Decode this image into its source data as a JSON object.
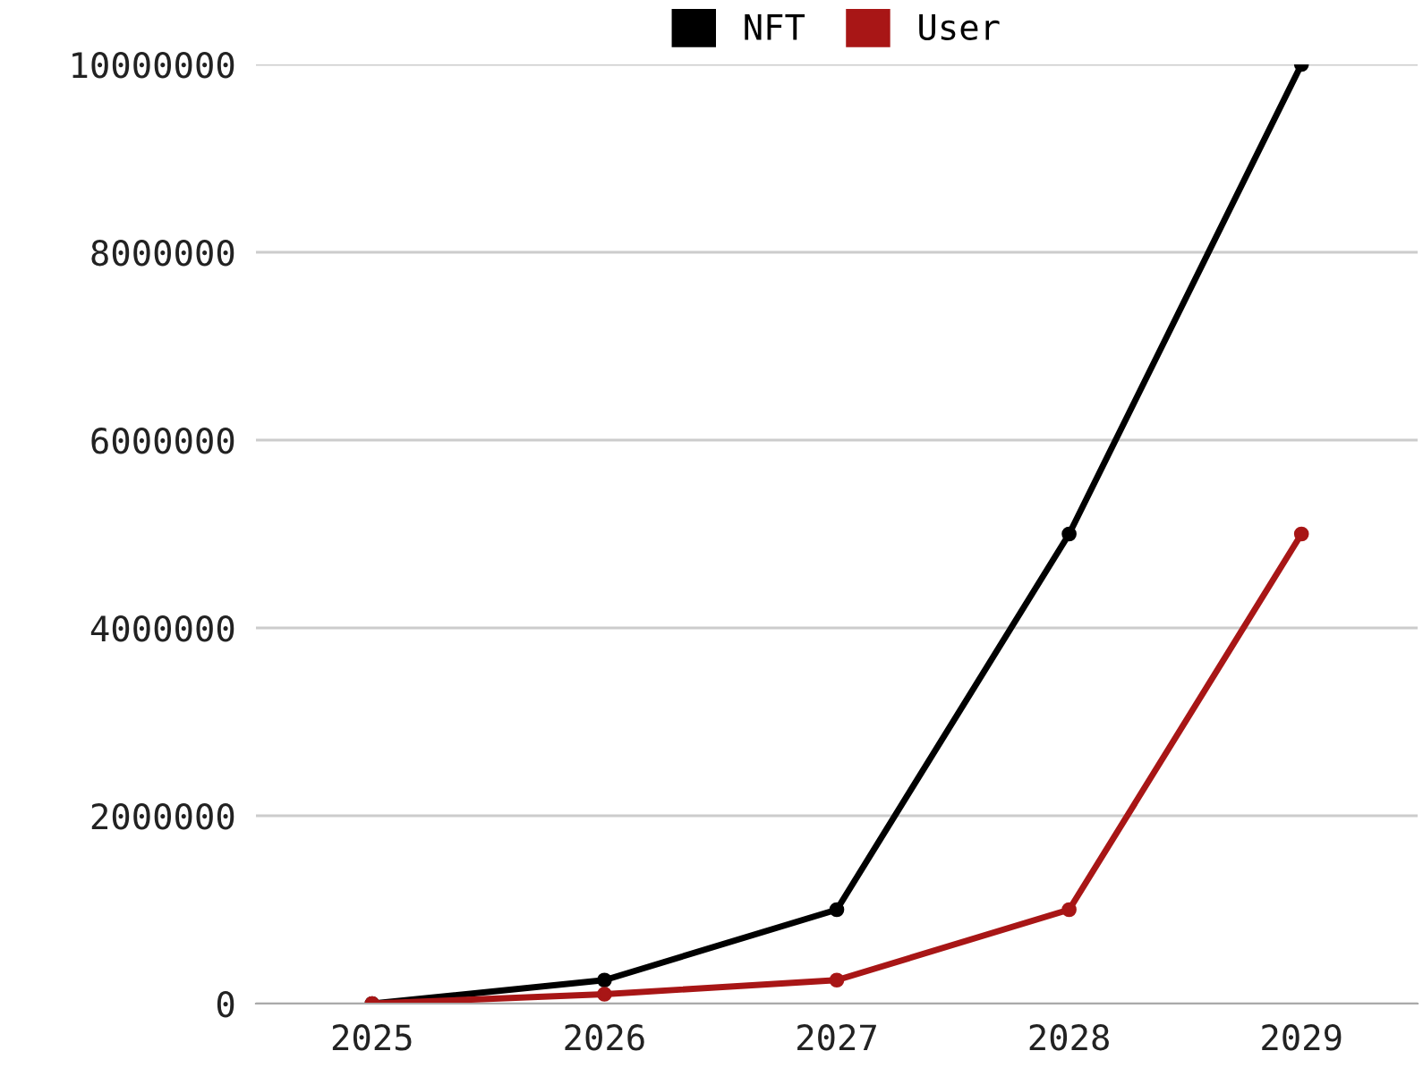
{
  "chart_data": {
    "type": "line",
    "categories": [
      "2025",
      "2026",
      "2027",
      "2028",
      "2029"
    ],
    "series": [
      {
        "name": "NFT",
        "color": "#000000",
        "values": [
          0,
          250000,
          1000000,
          5000000,
          10000000
        ]
      },
      {
        "name": "User",
        "color": "#a81616",
        "values": [
          0,
          100000,
          250000,
          1000000,
          5000000
        ]
      }
    ],
    "ylim": [
      0,
      10000000
    ],
    "yticks": [
      0,
      2000000,
      4000000,
      6000000,
      8000000,
      10000000
    ],
    "grid": "y",
    "legend": "top",
    "marker": "circle",
    "line_style": "solid"
  }
}
